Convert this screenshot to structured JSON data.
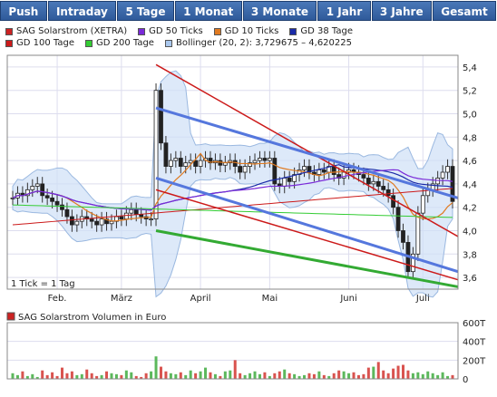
{
  "tabs": [
    {
      "label": "Push"
    },
    {
      "label": "Intraday"
    },
    {
      "label": "5 Tage"
    },
    {
      "label": "1 Monat"
    },
    {
      "label": "3 Monate"
    },
    {
      "label": "1 Jahr"
    },
    {
      "label": "3 Jahre"
    },
    {
      "label": "Gesamt"
    }
  ],
  "legend": [
    {
      "label": "SAG Solarstrom (XETRA)",
      "color": "#cc2222"
    },
    {
      "label": "GD 50 Ticks",
      "color": "#7a2ad8"
    },
    {
      "label": "GD 10 Ticks",
      "color": "#e07a20"
    },
    {
      "label": "GD 38 Tage",
      "color": "#1a2aa8"
    },
    {
      "label": "GD 100 Tage",
      "color": "#cc1a1a"
    },
    {
      "label": "GD 200 Tage",
      "color": "#33cc33"
    },
    {
      "label": "Bollinger (20, 2): 3,729675 – 4,620225",
      "color": "#aac8ee"
    }
  ],
  "tick_note": "1 Tick = 1 Tag",
  "volume_label": "SAG Solarstrom Volumen in Euro",
  "chart_data": [
    {
      "type": "candlestick",
      "title": "",
      "x_ticks": [
        "Feb.",
        "März",
        "April",
        "Mai",
        "Juni",
        "Juli"
      ],
      "y_ticks": [
        "3,6",
        "3,8",
        "4,0",
        "4,2",
        "4,4",
        "4,6",
        "4,8",
        "5,0",
        "5,2",
        "5,4"
      ],
      "ylim": [
        3.5,
        5.5
      ],
      "grid": true,
      "close": [
        4.28,
        4.32,
        4.3,
        4.35,
        4.38,
        4.4,
        4.3,
        4.28,
        4.25,
        4.22,
        4.18,
        4.12,
        4.05,
        4.08,
        4.12,
        4.1,
        4.08,
        4.05,
        4.1,
        4.06,
        4.08,
        4.12,
        4.1,
        4.15,
        4.18,
        4.14,
        4.12,
        4.1,
        4.1,
        5.2,
        4.75,
        4.55,
        4.6,
        4.62,
        4.55,
        4.58,
        4.6,
        4.55,
        4.6,
        4.62,
        4.58,
        4.6,
        4.56,
        4.58,
        4.6,
        4.55,
        4.5,
        4.55,
        4.58,
        4.6,
        4.62,
        4.6,
        4.62,
        4.4,
        4.38,
        4.45,
        4.42,
        4.48,
        4.52,
        4.55,
        4.5,
        4.48,
        4.52,
        4.5,
        4.55,
        4.48,
        4.45,
        4.5,
        4.52,
        4.5,
        4.48,
        4.45,
        4.4,
        4.42,
        4.38,
        4.35,
        4.3,
        4.2,
        4.0,
        3.9,
        3.65,
        3.8,
        4.15,
        4.3,
        4.35,
        4.4,
        4.45,
        4.5,
        4.55,
        4.25
      ],
      "bollinger": [
        3.729675,
        4.620225
      ],
      "channel_lines": [
        {
          "name": "GD 38 Tage",
          "color": "#1a2aa8"
        },
        {
          "name": "GD 100 Tage",
          "color": "#cc1a1a"
        },
        {
          "name": "GD 200 Tage",
          "color": "#33cc33"
        }
      ]
    },
    {
      "type": "bar",
      "title": "SAG Solarstrom Volumen in Euro",
      "y_ticks": [
        "0",
        "200T",
        "400T",
        "600T"
      ],
      "ylim": [
        0,
        600
      ],
      "values": [
        60,
        40,
        80,
        30,
        50,
        20,
        90,
        40,
        70,
        30,
        120,
        60,
        80,
        40,
        50,
        100,
        60,
        30,
        40,
        80,
        60,
        50,
        40,
        90,
        70,
        30,
        20,
        60,
        80,
        240,
        130,
        80,
        60,
        50,
        70,
        40,
        90,
        60,
        80,
        120,
        70,
        50,
        30,
        80,
        90,
        200,
        60,
        40,
        60,
        80,
        50,
        70,
        30,
        60,
        80,
        100,
        60,
        50,
        30,
        40,
        60,
        50,
        80,
        40,
        30,
        60,
        90,
        80,
        60,
        70,
        40,
        50,
        120,
        130,
        180,
        90,
        60,
        110,
        140,
        150,
        90,
        60,
        70,
        50,
        80,
        60,
        40,
        70,
        30,
        40
      ]
    }
  ]
}
